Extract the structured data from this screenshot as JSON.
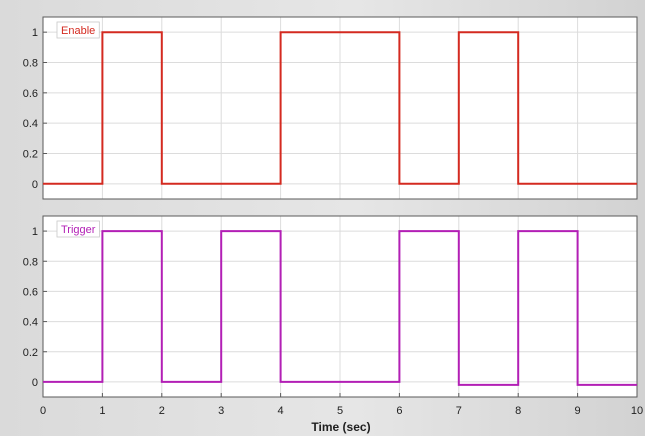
{
  "chart_data": [
    {
      "type": "line",
      "xlabel": "",
      "ylabel": "",
      "xlim": [
        0,
        10
      ],
      "ylim": [
        -0.1,
        1.1
      ],
      "xticks": [
        0,
        1,
        2,
        3,
        4,
        5,
        6,
        7,
        8,
        9,
        10
      ],
      "yticks": [
        {
          "value": 0,
          "label": "0"
        },
        {
          "value": 0.2,
          "label": "0.2"
        },
        {
          "value": 0.4,
          "label": "0.4"
        },
        {
          "value": 0.6,
          "label": "0.6"
        },
        {
          "value": 0.8,
          "label": "0.8"
        },
        {
          "value": 1,
          "label": "1"
        }
      ],
      "grid": true,
      "legend_position": "top-left",
      "series": [
        {
          "name": "Enable",
          "color": "#d42a20",
          "x": [
            0,
            1,
            1,
            2,
            2,
            4,
            4,
            6,
            6,
            7,
            7,
            8,
            8,
            10
          ],
          "y": [
            0,
            0,
            1,
            1,
            0,
            0,
            1,
            1,
            0,
            0,
            1,
            1,
            0,
            0
          ]
        }
      ]
    },
    {
      "type": "line",
      "xlabel": "Time (sec)",
      "ylabel": "",
      "xlim": [
        0,
        10
      ],
      "ylim": [
        -0.1,
        1.1
      ],
      "xticks": [
        0,
        1,
        2,
        3,
        4,
        5,
        6,
        7,
        8,
        9,
        10
      ],
      "yticks": [
        {
          "value": 0,
          "label": "0"
        },
        {
          "value": 0.2,
          "label": "0.2"
        },
        {
          "value": 0.4,
          "label": "0.4"
        },
        {
          "value": 0.6,
          "label": "0.6"
        },
        {
          "value": 0.8,
          "label": "0.8"
        },
        {
          "value": 1,
          "label": "1"
        }
      ],
      "grid": true,
      "legend_position": "top-left",
      "series": [
        {
          "name": "Trigger",
          "color": "#b21fb5",
          "x": [
            0,
            1,
            1,
            2,
            2,
            3,
            3,
            4,
            4,
            6,
            6,
            7,
            7,
            8,
            8,
            9,
            9,
            10
          ],
          "y": [
            0,
            0,
            1,
            1,
            0,
            0,
            1,
            1,
            0,
            0,
            1,
            1,
            -0.02,
            -0.02,
            1,
            1,
            -0.02,
            -0.02
          ]
        }
      ]
    }
  ]
}
